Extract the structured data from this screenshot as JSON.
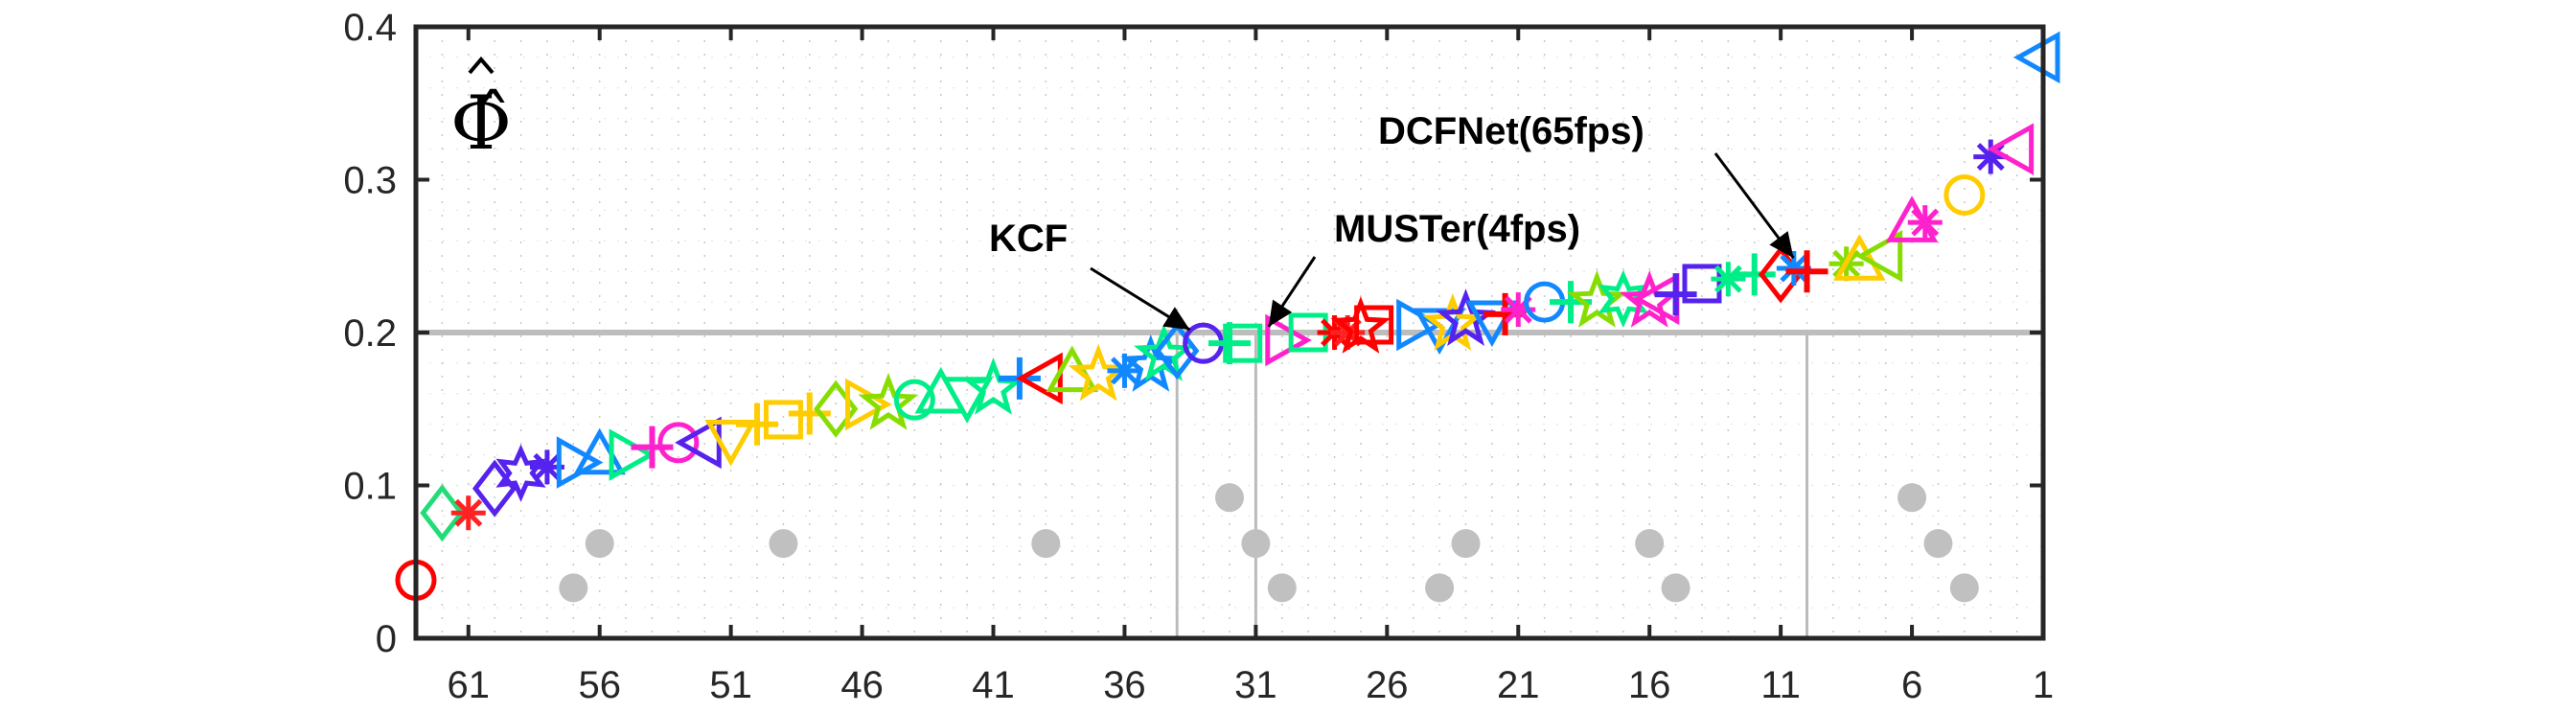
{
  "chart_data": {
    "type": "scatter",
    "ylabel": "Φ̂",
    "xlim": [
      63,
      1
    ],
    "ylim": [
      0,
      0.4
    ],
    "x_ticks": [
      "61",
      "56",
      "51",
      "46",
      "41",
      "36",
      "31",
      "26",
      "21",
      "16",
      "11",
      "6",
      "1"
    ],
    "y_ticks": [
      "0",
      "0.1",
      "0.2",
      "0.3",
      "0.4"
    ],
    "reference_line": 0.2,
    "reference_line_color": "#bdbdbd",
    "grid": "dotted",
    "points": [
      {
        "x": 63,
        "y": 0.038,
        "marker": "circle",
        "color": "#ff0000"
      },
      {
        "x": 62,
        "y": 0.082,
        "marker": "diamond",
        "color": "#22dd77"
      },
      {
        "x": 61,
        "y": 0.082,
        "marker": "asterisk",
        "color": "#ff2222"
      },
      {
        "x": 60,
        "y": 0.098,
        "marker": "diamond",
        "color": "#5522ee"
      },
      {
        "x": 59,
        "y": 0.108,
        "marker": "star6",
        "color": "#5522ee"
      },
      {
        "x": 58,
        "y": 0.112,
        "marker": "asterisk",
        "color": "#5522ee"
      },
      {
        "x": 57,
        "y": 0.115,
        "marker": "triangle-right",
        "color": "#1188ff"
      },
      {
        "x": 56,
        "y": 0.118,
        "marker": "triangle-up",
        "color": "#1188ff"
      },
      {
        "x": 55,
        "y": 0.12,
        "marker": "triangle-right",
        "color": "#00ee88"
      },
      {
        "x": 54,
        "y": 0.125,
        "marker": "plus",
        "color": "#ff22cc"
      },
      {
        "x": 53,
        "y": 0.128,
        "marker": "circle",
        "color": "#ff22cc"
      },
      {
        "x": 52,
        "y": 0.128,
        "marker": "triangle-left",
        "color": "#5522ee"
      },
      {
        "x": 51,
        "y": 0.132,
        "marker": "triangle-down",
        "color": "#ffcc00"
      },
      {
        "x": 50,
        "y": 0.14,
        "marker": "plus",
        "color": "#ffcc00"
      },
      {
        "x": 49,
        "y": 0.143,
        "marker": "square",
        "color": "#ffcc00"
      },
      {
        "x": 48,
        "y": 0.147,
        "marker": "plus",
        "color": "#ffcc00"
      },
      {
        "x": 47,
        "y": 0.15,
        "marker": "diamond",
        "color": "#88dd00"
      },
      {
        "x": 46,
        "y": 0.153,
        "marker": "triangle-right",
        "color": "#ffcc00"
      },
      {
        "x": 45,
        "y": 0.153,
        "marker": "star5",
        "color": "#88dd00"
      },
      {
        "x": 44,
        "y": 0.156,
        "marker": "circle",
        "color": "#00ee88"
      },
      {
        "x": 43,
        "y": 0.158,
        "marker": "triangle-up",
        "color": "#00ee88"
      },
      {
        "x": 42,
        "y": 0.16,
        "marker": "triangle-down",
        "color": "#00ee88"
      },
      {
        "x": 41,
        "y": 0.163,
        "marker": "star5",
        "color": "#00ee88"
      },
      {
        "x": 40,
        "y": 0.17,
        "marker": "plus",
        "color": "#1188ff"
      },
      {
        "x": 39,
        "y": 0.17,
        "marker": "triangle-left",
        "color": "#ff0000"
      },
      {
        "x": 38,
        "y": 0.172,
        "marker": "triangle-up",
        "color": "#88dd00"
      },
      {
        "x": 37,
        "y": 0.172,
        "marker": "star5",
        "color": "#ffcc00"
      },
      {
        "x": 36,
        "y": 0.175,
        "marker": "asterisk",
        "color": "#1188ff"
      },
      {
        "x": 35,
        "y": 0.178,
        "marker": "star5",
        "color": "#1188ff"
      },
      {
        "x": 34.5,
        "y": 0.185,
        "marker": "star5",
        "color": "#00ee88"
      },
      {
        "x": 34,
        "y": 0.188,
        "marker": "diamond",
        "color": "#1188ff"
      },
      {
        "x": 33,
        "y": 0.193,
        "marker": "circle",
        "color": "#5522ee"
      },
      {
        "x": 32,
        "y": 0.193,
        "marker": "plus",
        "color": "#00ee88"
      },
      {
        "x": 31.5,
        "y": 0.193,
        "marker": "square",
        "color": "#00ee88"
      },
      {
        "x": 30,
        "y": 0.195,
        "marker": "triangle-right",
        "color": "#ff22cc"
      },
      {
        "x": 29,
        "y": 0.2,
        "marker": "square",
        "color": "#00ee88"
      },
      {
        "x": 28,
        "y": 0.2,
        "marker": "asterisk",
        "color": "#ff0000"
      },
      {
        "x": 27.5,
        "y": 0.2,
        "marker": "asterisk",
        "color": "#ff2222"
      },
      {
        "x": 27,
        "y": 0.203,
        "marker": "star5",
        "color": "#ff0000"
      },
      {
        "x": 26.5,
        "y": 0.205,
        "marker": "square",
        "color": "#ff0000"
      },
      {
        "x": 25,
        "y": 0.205,
        "marker": "triangle-right",
        "color": "#1188ff"
      },
      {
        "x": 24,
        "y": 0.205,
        "marker": "triangle-down",
        "color": "#1188ff"
      },
      {
        "x": 23.5,
        "y": 0.205,
        "marker": "star5",
        "color": "#ffcc00"
      },
      {
        "x": 23,
        "y": 0.208,
        "marker": "star5",
        "color": "#5522ee"
      },
      {
        "x": 22,
        "y": 0.21,
        "marker": "triangle-down",
        "color": "#1188ff"
      },
      {
        "x": 21.5,
        "y": 0.212,
        "marker": "plus",
        "color": "#ff0000"
      },
      {
        "x": 21,
        "y": 0.215,
        "marker": "asterisk",
        "color": "#ff22cc"
      },
      {
        "x": 20,
        "y": 0.22,
        "marker": "circle",
        "color": "#1188ff"
      },
      {
        "x": 19,
        "y": 0.22,
        "marker": "plus",
        "color": "#00ee88"
      },
      {
        "x": 18,
        "y": 0.22,
        "marker": "star5",
        "color": "#88dd00"
      },
      {
        "x": 17,
        "y": 0.222,
        "marker": "star6",
        "color": "#00ee88"
      },
      {
        "x": 16,
        "y": 0.22,
        "marker": "star5",
        "color": "#ff22cc"
      },
      {
        "x": 15.5,
        "y": 0.222,
        "marker": "triangle-left",
        "color": "#ff22cc"
      },
      {
        "x": 15,
        "y": 0.225,
        "marker": "plus",
        "color": "#5522ee"
      },
      {
        "x": 14,
        "y": 0.232,
        "marker": "square",
        "color": "#5522ee"
      },
      {
        "x": 13,
        "y": 0.235,
        "marker": "asterisk",
        "color": "#00ee88"
      },
      {
        "x": 12,
        "y": 0.238,
        "marker": "plus",
        "color": "#00ee88"
      },
      {
        "x": 11,
        "y": 0.238,
        "marker": "diamond",
        "color": "#ff0000"
      },
      {
        "x": 10.5,
        "y": 0.242,
        "marker": "asterisk",
        "color": "#1188ff"
      },
      {
        "x": 10,
        "y": 0.24,
        "marker": "plus",
        "color": "#ff0000"
      },
      {
        "x": 8.5,
        "y": 0.245,
        "marker": "asterisk",
        "color": "#88dd00"
      },
      {
        "x": 8,
        "y": 0.245,
        "marker": "triangle-up",
        "color": "#ffcc00"
      },
      {
        "x": 7,
        "y": 0.25,
        "marker": "triangle-left",
        "color": "#88dd00"
      },
      {
        "x": 6,
        "y": 0.27,
        "marker": "triangle-up",
        "color": "#ff22cc"
      },
      {
        "x": 5.5,
        "y": 0.272,
        "marker": "asterisk",
        "color": "#ff22cc"
      },
      {
        "x": 4,
        "y": 0.29,
        "marker": "circle",
        "color": "#ffcc00"
      },
      {
        "x": 3,
        "y": 0.315,
        "marker": "asterisk",
        "color": "#5522ee"
      },
      {
        "x": 2,
        "y": 0.32,
        "marker": "triangle-left",
        "color": "#ff22cc"
      },
      {
        "x": 1,
        "y": 0.38,
        "marker": "triangle-left",
        "color": "#1188ff"
      }
    ],
    "vertical_lines_x": [
      34,
      31,
      10
    ],
    "annotations": [
      {
        "text": "KCF",
        "target_x": 33,
        "target_y": 0.193
      },
      {
        "text": "MUSTer(4fps)",
        "target_x": 30,
        "target_y": 0.195
      },
      {
        "text": "DCFNet(65fps)",
        "target_x": 10,
        "target_y": 0.24
      }
    ],
    "gray_dot_clusters": [
      {
        "x": [
          57,
          56
        ],
        "y": [
          0.033,
          0.062
        ]
      },
      {
        "x": [
          49
        ],
        "y": [
          0.062
        ]
      },
      {
        "x": [
          39
        ],
        "y": [
          0.062
        ]
      },
      {
        "x": [
          32,
          31,
          30
        ],
        "y": [
          0.092,
          0.062,
          0.033
        ]
      },
      {
        "x": [
          24,
          23
        ],
        "y": [
          0.033,
          0.062
        ]
      },
      {
        "x": [
          16,
          15
        ],
        "y": [
          0.062,
          0.033
        ]
      },
      {
        "x": [
          6,
          5,
          4
        ],
        "y": [
          0.092,
          0.062,
          0.033
        ]
      }
    ]
  }
}
